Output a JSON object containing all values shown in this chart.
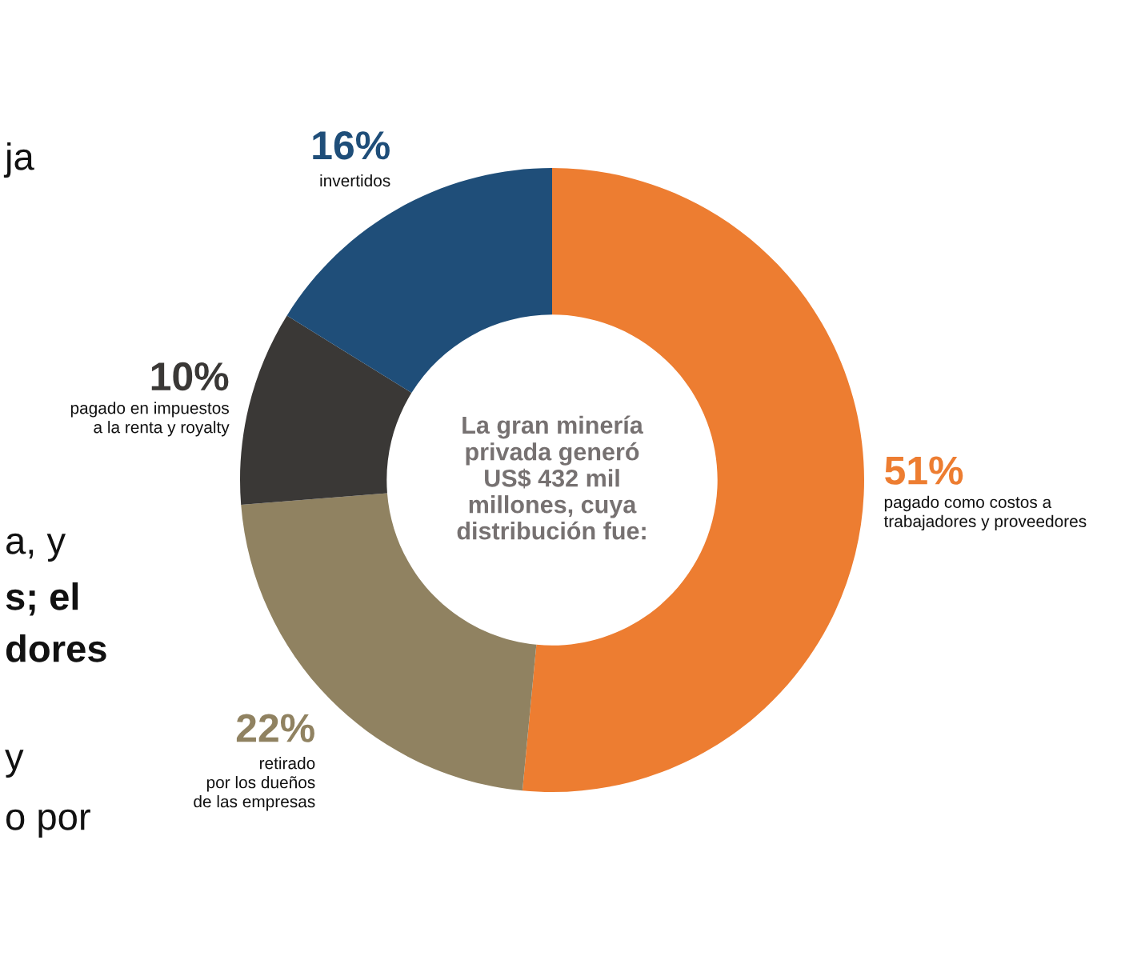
{
  "chart_data": {
    "type": "donut",
    "categories": [
      "pagado como costos a\ntrabajadores y proveedores",
      "retirado\npor los dueños\nde las empresas",
      "pagado en impuestos\na la renta y royalty",
      "invertidos"
    ],
    "values": [
      51,
      22,
      10,
      16
    ],
    "colors": [
      "#ed7d31",
      "#908261",
      "#3a3836",
      "#1f4e79"
    ],
    "value_labels": [
      "51%",
      "22%",
      "10%",
      "16%"
    ],
    "annotations": [
      "La gran minería\nprivada generó\nUS$ 432 mil\nmillones, cuya\ndistribución fue:",
      "ja",
      "a, y",
      "s; el",
      "dores",
      "y",
      "o por"
    ]
  }
}
